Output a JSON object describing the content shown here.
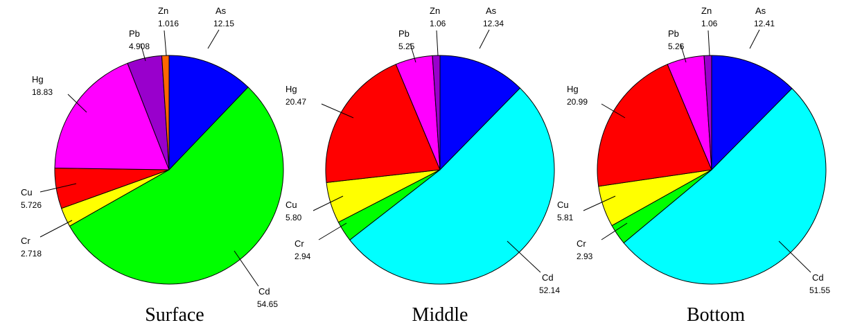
{
  "chart_data": [
    {
      "type": "pie",
      "title": "Surface",
      "slices": [
        {
          "label": "As",
          "value": 12.15,
          "display": "12.15",
          "color": "#0000ff"
        },
        {
          "label": "Cd",
          "value": 54.65,
          "display": "54.65",
          "color": "#00ff00"
        },
        {
          "label": "Cr",
          "value": 2.718,
          "display": "2.718",
          "color": "#ffff00"
        },
        {
          "label": "Cu",
          "value": 5.726,
          "display": "5.726",
          "color": "#ff0000"
        },
        {
          "label": "Hg",
          "value": 18.83,
          "display": "18.83",
          "color": "#ff00ff"
        },
        {
          "label": "Pb",
          "value": 4.908,
          "display": "4.908",
          "color": "#9900cc"
        },
        {
          "label": "Zn",
          "value": 1.016,
          "display": "1.016",
          "color": "#ff6600"
        }
      ]
    },
    {
      "type": "pie",
      "title": "Middle",
      "slices": [
        {
          "label": "As",
          "value": 12.34,
          "display": "12.34",
          "color": "#0000ff"
        },
        {
          "label": "Cd",
          "value": 52.14,
          "display": "52.14",
          "color": "#00ffff"
        },
        {
          "label": "Cr",
          "value": 2.94,
          "display": "2.94",
          "color": "#00ff00"
        },
        {
          "label": "Cu",
          "value": 5.8,
          "display": "5.80",
          "color": "#ffff00"
        },
        {
          "label": "Hg",
          "value": 20.47,
          "display": "20.47",
          "color": "#ff0000"
        },
        {
          "label": "Pb",
          "value": 5.25,
          "display": "5.25",
          "color": "#ff00ff"
        },
        {
          "label": "Zn",
          "value": 1.06,
          "display": "1.06",
          "color": "#9900cc"
        }
      ]
    },
    {
      "type": "pie",
      "title": "Bottom",
      "slices": [
        {
          "label": "As",
          "value": 12.41,
          "display": "12.41",
          "color": "#0000ff"
        },
        {
          "label": "Cd",
          "value": 51.55,
          "display": "51.55",
          "color": "#00ffff"
        },
        {
          "label": "Cr",
          "value": 2.93,
          "display": "2.93",
          "color": "#00ff00"
        },
        {
          "label": "Cu",
          "value": 5.81,
          "display": "5.81",
          "color": "#ffff00"
        },
        {
          "label": "Hg",
          "value": 20.99,
          "display": "20.99",
          "color": "#ff0000"
        },
        {
          "label": "Pb",
          "value": 5.26,
          "display": "5.26",
          "color": "#ff00ff"
        },
        {
          "label": "Zn",
          "value": 1.06,
          "display": "1.06",
          "color": "#9900cc"
        }
      ]
    }
  ]
}
